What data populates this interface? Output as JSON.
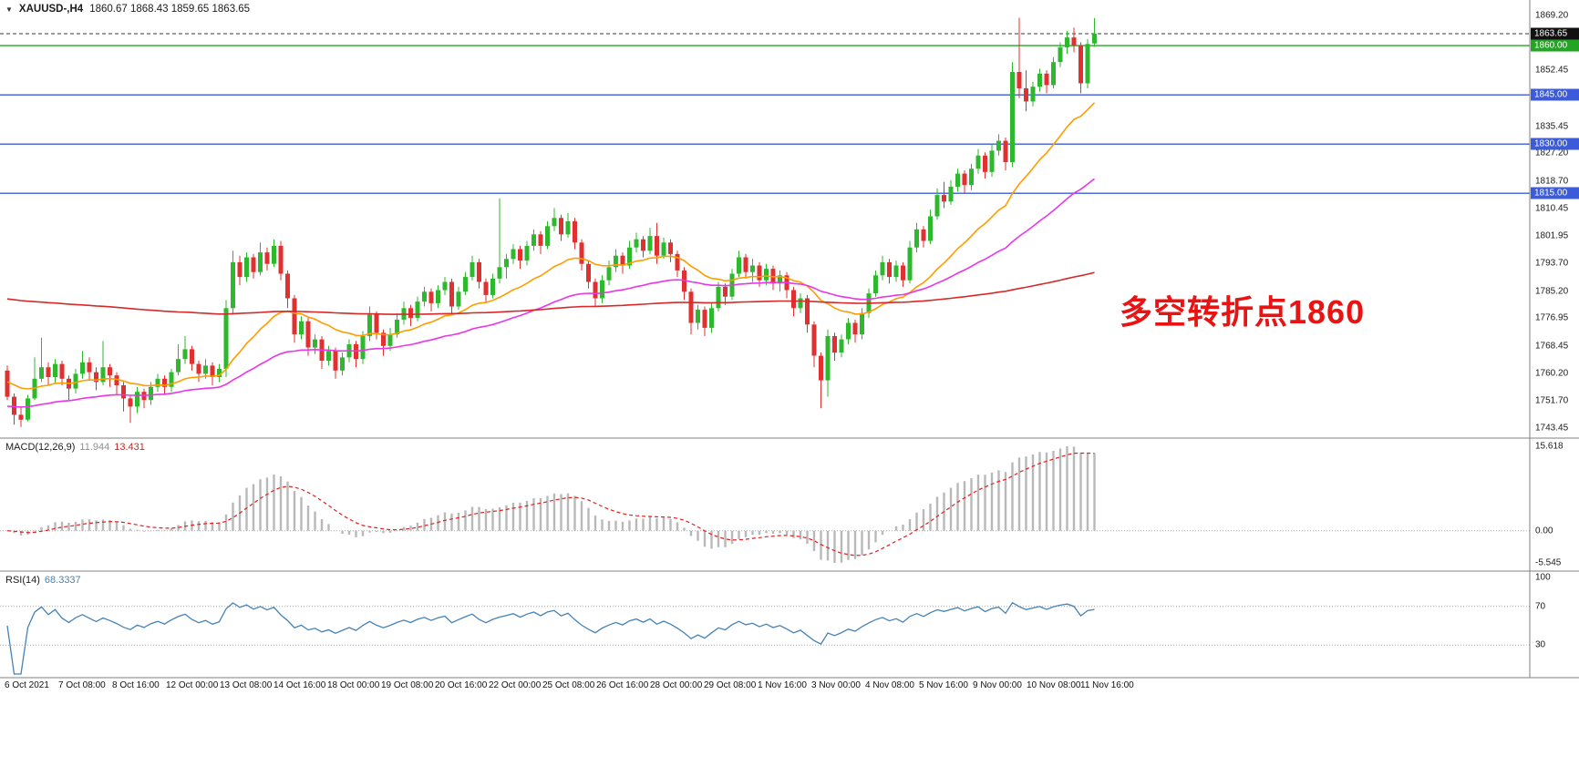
{
  "window": {
    "symbol_period": "XAUUSD-,H4",
    "ohlc_text": "1860.67 1868.43 1859.65 1863.65"
  },
  "annotation": {
    "text": "多空转折点1860",
    "color": "#e81414"
  },
  "colors": {
    "bull": "#2eb82e",
    "bear": "#e03030",
    "background": "#ffffff",
    "separator": "#808080",
    "axis_text": "#1a1a1a"
  },
  "chart_data": {
    "type": "candlestick",
    "symbol": "XAUUSD-",
    "timeframe": "H4",
    "current_candle": {
      "open": 1860.67,
      "high": 1868.43,
      "low": 1859.65,
      "close": 1863.65
    },
    "price_axis_ticks": [
      "1869.20",
      "1860.95",
      "1852.45",
      "1843.95",
      "1835.45",
      "1827.20",
      "1818.70",
      "1810.45",
      "1801.95",
      "1793.70",
      "1785.20",
      "1776.95",
      "1768.45",
      "1760.20",
      "1751.70",
      "1743.45"
    ],
    "x_axis_labels": [
      "6 Oct 2021",
      "7 Oct 08:00",
      "8 Oct 16:00",
      "12 Oct 00:00",
      "13 Oct 08:00",
      "14 Oct 16:00",
      "18 Oct 00:00",
      "19 Oct 08:00",
      "20 Oct 16:00",
      "22 Oct 00:00",
      "25 Oct 08:00",
      "26 Oct 16:00",
      "28 Oct 00:00",
      "29 Oct 08:00",
      "1 Nov 16:00",
      "3 Nov 00:00",
      "4 Nov 08:00",
      "5 Nov 16:00",
      "9 Nov 00:00",
      "10 Nov 08:00",
      "11 Nov 16:00"
    ],
    "h_lines": [
      {
        "price": 1863.65,
        "label": "1863.65",
        "line_color": "#3a3a3a",
        "label_bg": "#111111",
        "dash": "4,3",
        "role": "bid"
      },
      {
        "price": 1860.0,
        "label": "1860.00",
        "line_color": "#23a523",
        "label_bg": "#23a523",
        "dash": "",
        "role": "level"
      },
      {
        "price": 1845.0,
        "label": "1845.00",
        "line_color": "#3b5bdb",
        "label_bg": "#3b5bdb",
        "dash": "",
        "role": "level"
      },
      {
        "price": 1830.0,
        "label": "1830.00",
        "line_color": "#3b5bdb",
        "label_bg": "#3b5bdb",
        "dash": "",
        "role": "level"
      },
      {
        "price": 1815.0,
        "label": "1815.00",
        "line_color": "#3b5bdb",
        "label_bg": "#3b5bdb",
        "dash": "",
        "role": "level"
      }
    ],
    "moving_averages": [
      {
        "name": "ma-fast",
        "period": 21,
        "seed": 1758,
        "color": "#ff9c00"
      },
      {
        "name": "ma-mid",
        "period": 55,
        "seed": 1750,
        "color": "#e836e8"
      },
      {
        "name": "ma-slow",
        "period": 300,
        "seed": 1783,
        "color": "#d42a2a"
      }
    ],
    "macd": {
      "label": "MACD(12,26,9)",
      "value_main": "11.944",
      "value_signal": "13.431",
      "fast": 12,
      "slow": 26,
      "signal": 9,
      "axis_ticks": [
        "15.618",
        "0.00",
        "-5.545"
      ],
      "hist_color": "#b8b8b8",
      "signal_color": "#e02020"
    },
    "rsi": {
      "label": "RSI(14)",
      "value": "68.3337",
      "period": 14,
      "axis_ticks": [
        "100",
        "70",
        "30"
      ],
      "levels": [
        70,
        30
      ],
      "color": "#4682b4"
    },
    "candles": [
      [
        1761.0,
        1762.5,
        1752.0,
        1753.0
      ],
      [
        1753.0,
        1754.0,
        1744.5,
        1747.5
      ],
      [
        1747.5,
        1750.0,
        1743.8,
        1746.0
      ],
      [
        1746.0,
        1753.5,
        1745.5,
        1752.5
      ],
      [
        1752.5,
        1765.0,
        1752.0,
        1758.5
      ],
      [
        1758.5,
        1771.0,
        1757.5,
        1762.0
      ],
      [
        1762.0,
        1763.5,
        1756.5,
        1759.0
      ],
      [
        1759.0,
        1764.5,
        1757.0,
        1763.0
      ],
      [
        1763.0,
        1764.0,
        1756.5,
        1758.5
      ],
      [
        1758.5,
        1759.5,
        1752.0,
        1755.5
      ],
      [
        1755.5,
        1761.5,
        1754.0,
        1760.0
      ],
      [
        1760.0,
        1767.0,
        1758.5,
        1763.5
      ],
      [
        1763.5,
        1765.0,
        1758.0,
        1760.5
      ],
      [
        1760.5,
        1762.0,
        1755.0,
        1757.5
      ],
      [
        1757.5,
        1770.0,
        1756.5,
        1762.0
      ],
      [
        1762.0,
        1763.0,
        1756.0,
        1759.5
      ],
      [
        1759.5,
        1760.5,
        1753.5,
        1756.5
      ],
      [
        1756.5,
        1757.5,
        1748.5,
        1752.5
      ],
      [
        1752.5,
        1753.5,
        1745.0,
        1750.0
      ],
      [
        1750.0,
        1756.0,
        1748.0,
        1754.5
      ],
      [
        1754.5,
        1755.5,
        1749.5,
        1752.0
      ],
      [
        1752.0,
        1757.5,
        1750.5,
        1756.0
      ],
      [
        1756.0,
        1760.0,
        1754.5,
        1758.5
      ],
      [
        1758.5,
        1759.5,
        1753.5,
        1756.0
      ],
      [
        1756.0,
        1761.5,
        1754.5,
        1760.5
      ],
      [
        1760.5,
        1769.0,
        1759.5,
        1764.5
      ],
      [
        1764.5,
        1771.5,
        1763.0,
        1767.5
      ],
      [
        1767.5,
        1768.5,
        1761.0,
        1763.0
      ],
      [
        1763.0,
        1764.0,
        1757.5,
        1760.0
      ],
      [
        1760.0,
        1764.5,
        1758.5,
        1762.5
      ],
      [
        1762.5,
        1763.5,
        1756.5,
        1759.0
      ],
      [
        1759.0,
        1763.0,
        1757.5,
        1761.5
      ],
      [
        1761.5,
        1782.5,
        1759.0,
        1780.0
      ],
      [
        1780.0,
        1797.5,
        1778.0,
        1794.0
      ],
      [
        1794.0,
        1796.0,
        1787.0,
        1789.5
      ],
      [
        1789.5,
        1797.0,
        1788.0,
        1795.5
      ],
      [
        1795.5,
        1796.5,
        1789.0,
        1791.0
      ],
      [
        1791.0,
        1800.0,
        1790.0,
        1797.0
      ],
      [
        1797.0,
        1798.5,
        1791.5,
        1793.5
      ],
      [
        1793.5,
        1801.0,
        1792.5,
        1799.0
      ],
      [
        1799.0,
        1800.5,
        1788.5,
        1790.5
      ],
      [
        1790.5,
        1791.5,
        1780.0,
        1783.0
      ],
      [
        1783.0,
        1784.0,
        1769.5,
        1772.0
      ],
      [
        1772.0,
        1777.5,
        1770.5,
        1776.0
      ],
      [
        1776.0,
        1777.0,
        1765.5,
        1768.0
      ],
      [
        1768.0,
        1772.0,
        1766.0,
        1770.5
      ],
      [
        1770.5,
        1771.5,
        1761.5,
        1764.0
      ],
      [
        1764.0,
        1768.5,
        1762.5,
        1767.0
      ],
      [
        1767.0,
        1768.0,
        1758.5,
        1761.0
      ],
      [
        1761.0,
        1766.5,
        1759.5,
        1765.0
      ],
      [
        1765.0,
        1770.5,
        1763.5,
        1769.0
      ],
      [
        1769.0,
        1770.0,
        1762.0,
        1764.5
      ],
      [
        1764.5,
        1773.0,
        1763.0,
        1771.5
      ],
      [
        1771.5,
        1780.5,
        1770.0,
        1778.0
      ],
      [
        1778.0,
        1779.0,
        1770.5,
        1772.5
      ],
      [
        1772.5,
        1773.5,
        1765.5,
        1768.5
      ],
      [
        1768.5,
        1774.0,
        1767.0,
        1772.0
      ],
      [
        1772.0,
        1778.5,
        1771.0,
        1776.5
      ],
      [
        1776.5,
        1782.0,
        1775.0,
        1780.0
      ],
      [
        1780.0,
        1781.0,
        1774.5,
        1777.0
      ],
      [
        1777.0,
        1783.5,
        1776.0,
        1782.0
      ],
      [
        1782.0,
        1786.5,
        1780.5,
        1785.0
      ],
      [
        1785.0,
        1786.0,
        1779.0,
        1781.5
      ],
      [
        1781.5,
        1787.0,
        1780.0,
        1785.5
      ],
      [
        1785.5,
        1789.5,
        1784.0,
        1788.0
      ],
      [
        1788.0,
        1789.0,
        1778.5,
        1780.5
      ],
      [
        1780.5,
        1786.5,
        1779.5,
        1785.0
      ],
      [
        1785.0,
        1791.0,
        1784.0,
        1789.5
      ],
      [
        1789.5,
        1796.0,
        1788.5,
        1794.0
      ],
      [
        1794.0,
        1795.0,
        1786.0,
        1788.0
      ],
      [
        1788.0,
        1789.0,
        1781.5,
        1784.0
      ],
      [
        1784.0,
        1790.5,
        1783.0,
        1789.0
      ],
      [
        1789.0,
        1813.5,
        1787.5,
        1792.5
      ],
      [
        1792.5,
        1796.5,
        1789.0,
        1795.0
      ],
      [
        1795.0,
        1799.5,
        1793.5,
        1798.0
      ],
      [
        1798.0,
        1799.0,
        1792.0,
        1794.5
      ],
      [
        1794.5,
        1800.5,
        1793.0,
        1799.0
      ],
      [
        1799.0,
        1804.0,
        1797.5,
        1802.5
      ],
      [
        1802.5,
        1803.5,
        1796.5,
        1799.0
      ],
      [
        1799.0,
        1806.5,
        1798.0,
        1805.0
      ],
      [
        1805.0,
        1810.5,
        1803.5,
        1807.5
      ],
      [
        1807.5,
        1808.5,
        1800.5,
        1802.5
      ],
      [
        1802.5,
        1809.0,
        1801.5,
        1806.5
      ],
      [
        1806.5,
        1807.5,
        1798.0,
        1800.0
      ],
      [
        1800.0,
        1801.0,
        1791.5,
        1793.5
      ],
      [
        1793.5,
        1794.5,
        1786.0,
        1788.0
      ],
      [
        1788.0,
        1789.0,
        1780.5,
        1783.0
      ],
      [
        1783.0,
        1790.0,
        1781.5,
        1788.5
      ],
      [
        1788.5,
        1794.5,
        1787.0,
        1792.5
      ],
      [
        1792.5,
        1798.0,
        1791.0,
        1796.0
      ],
      [
        1796.0,
        1797.0,
        1790.5,
        1793.0
      ],
      [
        1793.0,
        1800.5,
        1792.0,
        1798.5
      ],
      [
        1798.5,
        1803.0,
        1797.0,
        1801.0
      ],
      [
        1801.0,
        1802.0,
        1795.5,
        1797.5
      ],
      [
        1797.5,
        1804.5,
        1796.5,
        1802.0
      ],
      [
        1802.0,
        1806.0,
        1793.5,
        1796.0
      ],
      [
        1796.0,
        1801.5,
        1795.0,
        1800.0
      ],
      [
        1800.0,
        1801.0,
        1794.0,
        1796.5
      ],
      [
        1796.5,
        1797.5,
        1789.5,
        1791.5
      ],
      [
        1791.5,
        1792.5,
        1782.5,
        1785.0
      ],
      [
        1785.0,
        1786.0,
        1772.0,
        1775.5
      ],
      [
        1775.5,
        1781.0,
        1773.5,
        1779.5
      ],
      [
        1779.5,
        1780.5,
        1771.5,
        1774.0
      ],
      [
        1774.0,
        1781.5,
        1772.5,
        1780.0
      ],
      [
        1780.0,
        1788.0,
        1779.0,
        1786.5
      ],
      [
        1786.5,
        1787.5,
        1781.0,
        1783.5
      ],
      [
        1783.5,
        1792.0,
        1782.5,
        1790.5
      ],
      [
        1790.5,
        1797.5,
        1789.5,
        1795.5
      ],
      [
        1795.5,
        1796.5,
        1789.0,
        1791.0
      ],
      [
        1791.0,
        1795.0,
        1788.0,
        1793.0
      ],
      [
        1793.0,
        1794.0,
        1786.5,
        1788.5
      ],
      [
        1788.5,
        1793.5,
        1787.0,
        1792.0
      ],
      [
        1792.0,
        1793.0,
        1785.5,
        1787.5
      ],
      [
        1787.5,
        1791.5,
        1785.0,
        1790.0
      ],
      [
        1790.0,
        1791.0,
        1783.0,
        1785.5
      ],
      [
        1785.5,
        1786.5,
        1777.5,
        1780.0
      ],
      [
        1780.0,
        1784.5,
        1778.5,
        1783.0
      ],
      [
        1783.0,
        1784.0,
        1772.5,
        1775.0
      ],
      [
        1775.0,
        1776.0,
        1762.0,
        1765.5
      ],
      [
        1765.5,
        1766.5,
        1749.5,
        1758.0
      ],
      [
        1758.0,
        1773.5,
        1753.0,
        1771.5
      ],
      [
        1771.5,
        1772.5,
        1764.0,
        1766.5
      ],
      [
        1766.5,
        1772.0,
        1765.0,
        1770.5
      ],
      [
        1770.5,
        1777.0,
        1769.0,
        1775.5
      ],
      [
        1775.5,
        1776.5,
        1769.5,
        1772.0
      ],
      [
        1772.0,
        1780.0,
        1770.5,
        1778.5
      ],
      [
        1778.5,
        1786.0,
        1777.0,
        1784.5
      ],
      [
        1784.5,
        1791.5,
        1783.5,
        1790.0
      ],
      [
        1790.0,
        1796.0,
        1788.5,
        1794.0
      ],
      [
        1794.0,
        1795.0,
        1787.5,
        1789.5
      ],
      [
        1789.5,
        1794.5,
        1788.0,
        1793.0
      ],
      [
        1793.0,
        1794.0,
        1786.5,
        1788.5
      ],
      [
        1788.5,
        1800.5,
        1787.5,
        1798.5
      ],
      [
        1798.5,
        1806.0,
        1797.0,
        1804.0
      ],
      [
        1804.0,
        1805.0,
        1798.5,
        1800.5
      ],
      [
        1800.5,
        1810.0,
        1799.5,
        1808.0
      ],
      [
        1808.0,
        1816.5,
        1807.0,
        1814.5
      ],
      [
        1814.5,
        1818.5,
        1810.5,
        1812.5
      ],
      [
        1812.5,
        1819.0,
        1811.5,
        1817.0
      ],
      [
        1817.0,
        1822.5,
        1815.5,
        1821.0
      ],
      [
        1821.0,
        1822.0,
        1815.0,
        1817.5
      ],
      [
        1817.5,
        1824.0,
        1816.0,
        1822.5
      ],
      [
        1822.5,
        1828.5,
        1821.0,
        1826.5
      ],
      [
        1826.5,
        1827.5,
        1819.5,
        1821.5
      ],
      [
        1821.5,
        1830.0,
        1820.0,
        1828.0
      ],
      [
        1828.0,
        1833.0,
        1826.5,
        1831.0
      ],
      [
        1831.0,
        1832.0,
        1822.0,
        1824.5
      ],
      [
        1824.5,
        1855.0,
        1823.0,
        1852.0
      ],
      [
        1852.0,
        1868.5,
        1844.0,
        1847.0
      ],
      [
        1847.0,
        1852.5,
        1840.0,
        1843.0
      ],
      [
        1843.0,
        1849.0,
        1841.5,
        1847.5
      ],
      [
        1847.5,
        1853.0,
        1846.0,
        1851.5
      ],
      [
        1851.5,
        1852.5,
        1845.5,
        1848.0
      ],
      [
        1848.0,
        1856.5,
        1847.0,
        1855.0
      ],
      [
        1855.0,
        1861.0,
        1853.5,
        1859.5
      ],
      [
        1859.5,
        1864.5,
        1857.5,
        1862.5
      ],
      [
        1862.5,
        1865.5,
        1858.0,
        1860.0
      ],
      [
        1860.0,
        1861.0,
        1845.5,
        1848.5
      ],
      [
        1848.5,
        1862.0,
        1847.0,
        1860.5
      ],
      [
        1860.67,
        1868.43,
        1859.65,
        1863.65
      ]
    ]
  }
}
